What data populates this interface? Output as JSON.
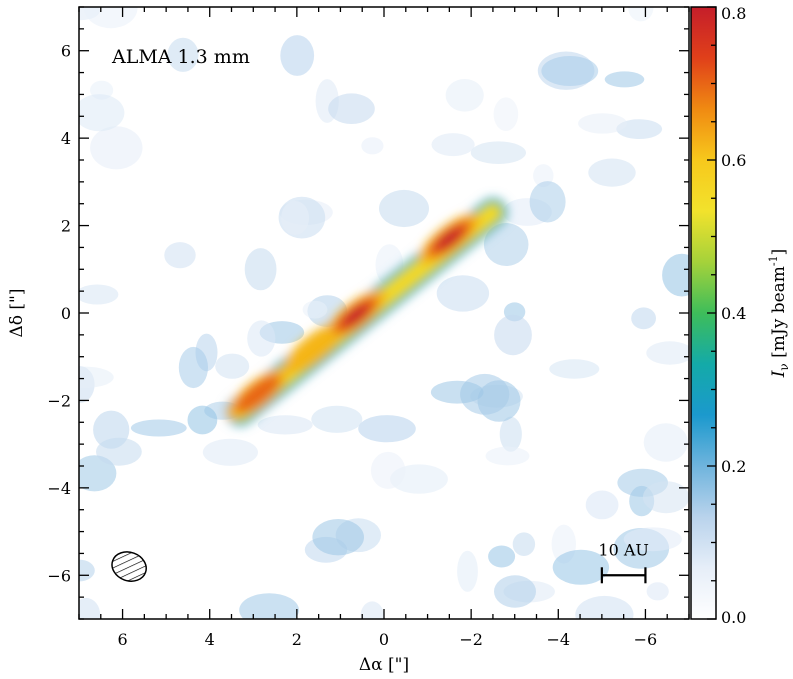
{
  "chart_data": {
    "type": "heatmap",
    "title": "",
    "annotation": "ALMA 1.3 mm",
    "xlabel": "Δα [\"]",
    "ylabel": "Δδ [\"]",
    "xlim": [
      7,
      -7
    ],
    "ylim": [
      -7,
      7
    ],
    "x_ticks": [
      6,
      4,
      2,
      0,
      -2,
      -4,
      -6
    ],
    "x_tick_labels": [
      "6",
      "4",
      "2",
      "0",
      "−2",
      "−4",
      "−6"
    ],
    "y_ticks": [
      6,
      4,
      2,
      0,
      -2,
      -4,
      -6
    ],
    "y_tick_labels": [
      "6",
      "4",
      "2",
      "0",
      "−2",
      "−4",
      "−6"
    ],
    "colorbar": {
      "label_symbol": "I",
      "label_subscript": "ν",
      "label_unit": " [mJy beam",
      "label_exp": "-1",
      "label_close": "]",
      "range": [
        0.0,
        0.8
      ],
      "ticks": [
        0.0,
        0.2,
        0.4,
        0.6,
        0.8
      ],
      "tick_labels": [
        "0.0",
        "0.2",
        "0.4",
        "0.6",
        "0.8"
      ],
      "colors": [
        "#ffffff",
        "#e6eef8",
        "#b9d3ec",
        "#6fb4dd",
        "#1b99cd",
        "#14aaa8",
        "#3ebd5a",
        "#a5d23a",
        "#f2e22c",
        "#f7c81c",
        "#f08a12",
        "#e0401a",
        "#c51e2a"
      ]
    },
    "disk": {
      "start": [
        3.3,
        -2.25
      ],
      "end": [
        -2.5,
        2.3
      ],
      "peak_intensity": 0.8,
      "knots": [
        {
          "x": 2.9,
          "y": -1.85,
          "value": 0.7
        },
        {
          "x": 1.6,
          "y": -0.8,
          "value": 0.6
        },
        {
          "x": 0.65,
          "y": -0.05,
          "value": 0.78
        },
        {
          "x": -1.5,
          "y": 1.7,
          "value": 0.8
        }
      ]
    },
    "beam": {
      "x": 5.85,
      "y": -5.8,
      "major": 0.8,
      "minor": 0.65,
      "pa_deg": 20
    },
    "scale_bar": {
      "label": "10 AU",
      "x_start": -5.0,
      "x_end": -6.0,
      "y": -6.0
    }
  }
}
